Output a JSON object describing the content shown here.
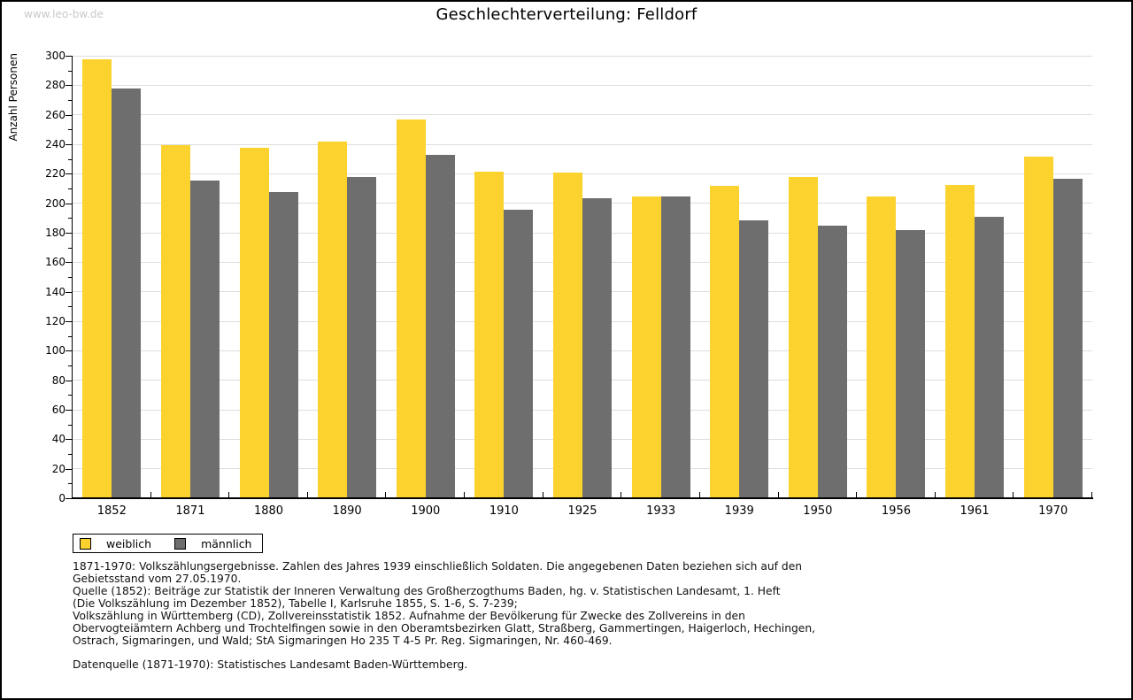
{
  "watermark": "www.leo-bw.de",
  "title": "Geschlechterverteilung: Felldorf",
  "chart_data": {
    "type": "bar",
    "title": "Geschlechterverteilung: Felldorf",
    "xlabel": "",
    "ylabel": "Anzahl Personen",
    "ylim": [
      0,
      300
    ],
    "ytick_step": 20,
    "ytick_minor_step": 10,
    "grid": true,
    "legend_position": "bottom-left",
    "categories": [
      "1852",
      "1871",
      "1880",
      "1890",
      "1900",
      "1910",
      "1925",
      "1933",
      "1939",
      "1950",
      "1956",
      "1961",
      "1970"
    ],
    "series": [
      {
        "name": "weiblich",
        "color": "#FCD32E",
        "values": [
          297,
          239,
          237,
          241,
          256,
          221,
          220,
          204,
          211,
          217,
          204,
          212,
          231
        ]
      },
      {
        "name": "männlich",
        "color": "#6E6E6E",
        "values": [
          277,
          215,
          207,
          217,
          232,
          195,
          203,
          204,
          188,
          184,
          181,
          190,
          216
        ]
      }
    ]
  },
  "legend": {
    "items": [
      {
        "label": "weiblich",
        "color": "#FCD32E"
      },
      {
        "label": "männlich",
        "color": "#6E6E6E"
      }
    ]
  },
  "footnotes": {
    "lines": [
      "1871-1970: Volkszählungsergebnisse. Zahlen des Jahres 1939 einschließlich Soldaten. Die angegebenen Daten beziehen sich auf den",
      "Gebietsstand vom 27.05.1970.",
      "Quelle (1852): Beiträge zur Statistik der Inneren Verwaltung des Großherzogthums Baden, hg. v. Statistischen Landesamt, 1. Heft",
      "(Die Volkszählung im Dezember 1852), Tabelle I, Karlsruhe 1855, S. 1-6, S. 7-239;",
      "Volkszählung in Württemberg (CD), Zollvereinsstatistik 1852. Aufnahme der Bevölkerung für Zwecke des Zollvereins in den",
      "Obervogteiämtern Achberg und Trochtelfingen sowie in den Oberamtsbezirken Glatt, Straßberg, Gammertingen, Haigerloch, Hechingen,",
      "Ostrach, Sigmaringen, und Wald; StA Sigmaringen Ho 235 T 4-5 Pr. Reg. Sigmaringen, Nr. 460-469."
    ],
    "datasource": "Datenquelle (1871-1970): Statistisches Landesamt Baden-Württemberg."
  },
  "colors": {
    "bar_weiblich": "#FCD32E",
    "bar_männlich": "#6E6E6E",
    "gridline": "#DEDEDE",
    "axis": "#000000",
    "watermark": "#C9C9C9",
    "background": "#FFFFFF",
    "border": "#000000"
  }
}
